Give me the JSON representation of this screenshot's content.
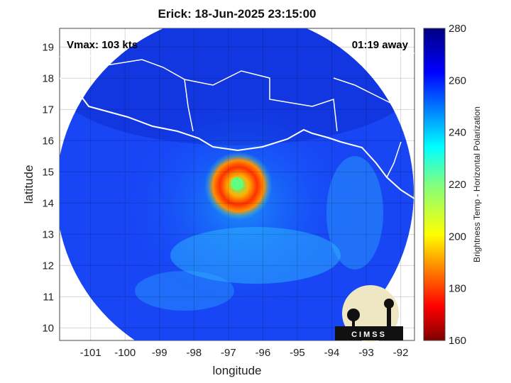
{
  "chart_data": {
    "type": "heatmap",
    "title": "Erick: 18-Jun-2025 23:15:00",
    "xlabel": "longitude",
    "ylabel": "latitude",
    "xlim": [
      -101.9,
      -91.6
    ],
    "ylim": [
      9.6,
      19.6
    ],
    "x_ticks": [
      -101,
      -100,
      -99,
      -98,
      -97,
      -96,
      -95,
      -94,
      -93,
      -92
    ],
    "y_ticks": [
      10,
      11,
      12,
      13,
      14,
      15,
      16,
      17,
      18,
      19
    ],
    "grid": true,
    "annotations": {
      "vmax": "Vmax: 103 kts",
      "away": "01:19 away"
    },
    "colorbar": {
      "label": "Brightness Temp - Horizontal Polarization",
      "min": 160,
      "max": 280,
      "ticks": [
        160,
        180,
        200,
        220,
        240,
        260,
        280
      ],
      "colormap": "jet"
    },
    "storm": {
      "center": [
        -96.7,
        14.55
      ],
      "eye_temp": 250,
      "eyewall_temp": 185,
      "background_temp": 262
    },
    "logo": "CIMSS"
  }
}
